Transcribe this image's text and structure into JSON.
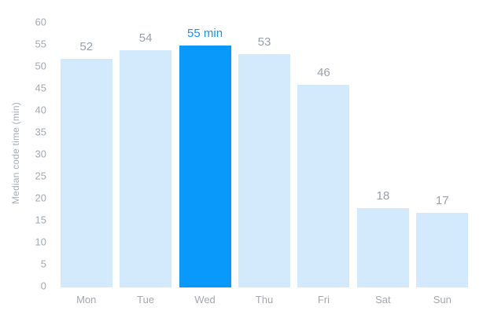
{
  "chart_data": {
    "type": "bar",
    "title": "",
    "xlabel": "",
    "ylabel": "Median code time (min)",
    "categories": [
      "Mon",
      "Tue",
      "Wed",
      "Thu",
      "Fri",
      "Sat",
      "Sun"
    ],
    "values": [
      52,
      54,
      55,
      53,
      46,
      18,
      17
    ],
    "value_labels": [
      "52",
      "54",
      "55 min",
      "53",
      "46",
      "18",
      "17"
    ],
    "highlight_index": 2,
    "ylim": [
      0,
      60
    ],
    "yticks": [
      0,
      5,
      10,
      15,
      20,
      25,
      30,
      35,
      40,
      45,
      50,
      55,
      60
    ],
    "grid": false,
    "legend_position": "none",
    "colors": {
      "bar": "#d2eafc",
      "highlight_bar": "#0999fa",
      "highlight_label": "#1195f3",
      "value_label": "#99a0a9",
      "axis_text": "#a4aab2",
      "background": "#ffffff"
    }
  }
}
